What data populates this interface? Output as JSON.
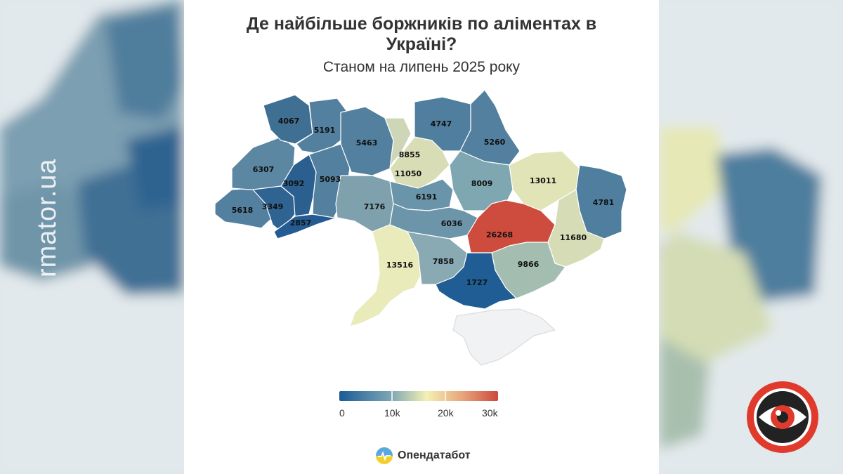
{
  "title_line1": "Де найбільше боржників по аліментах в",
  "title_line2": "Україні?",
  "subtitle": "Станом на липень 2025 року",
  "legend": {
    "ticks": [
      "0",
      "10k",
      "20k",
      "30k"
    ],
    "min": 0,
    "max": 30000,
    "colors": [
      "#1a5b96",
      "#6a9bb0",
      "#f4f0b4",
      "#e8a37a",
      "#cc4a3c"
    ]
  },
  "credit": "Опендатабот",
  "watermark": "rmator.ua",
  "regions": [
    {
      "name": "Volyn",
      "value": "4067"
    },
    {
      "name": "Rivne",
      "value": "5191"
    },
    {
      "name": "Zhytomyr",
      "value": "5463"
    },
    {
      "name": "Kyiv city",
      "value": "8855"
    },
    {
      "name": "Chernihiv",
      "value": "4747"
    },
    {
      "name": "Sumy",
      "value": "5260"
    },
    {
      "name": "Lviv",
      "value": "6307"
    },
    {
      "name": "Ternopil",
      "value": "3092"
    },
    {
      "name": "Khmelnytskyi",
      "value": "5093"
    },
    {
      "name": "Kyiv",
      "value": "11050"
    },
    {
      "name": "Poltava",
      "value": "8009"
    },
    {
      "name": "Kharkiv",
      "value": "13011"
    },
    {
      "name": "Luhansk",
      "value": "4781"
    },
    {
      "name": "Zakarpattia",
      "value": "5618"
    },
    {
      "name": "Ivano-Frankivsk",
      "value": "3349"
    },
    {
      "name": "Chernivtsi",
      "value": "2857"
    },
    {
      "name": "Vinnytsia",
      "value": "7176"
    },
    {
      "name": "Cherkasy",
      "value": "6191"
    },
    {
      "name": "Kirovohrad",
      "value": "6036"
    },
    {
      "name": "Dnipropetrovsk",
      "value": "26268"
    },
    {
      "name": "Donetsk",
      "value": "11680"
    },
    {
      "name": "Odesa",
      "value": "13516"
    },
    {
      "name": "Mykolaiv",
      "value": "7858"
    },
    {
      "name": "Zaporizhzhia",
      "value": "9866"
    },
    {
      "name": "Kherson",
      "value": "1727"
    }
  ]
}
